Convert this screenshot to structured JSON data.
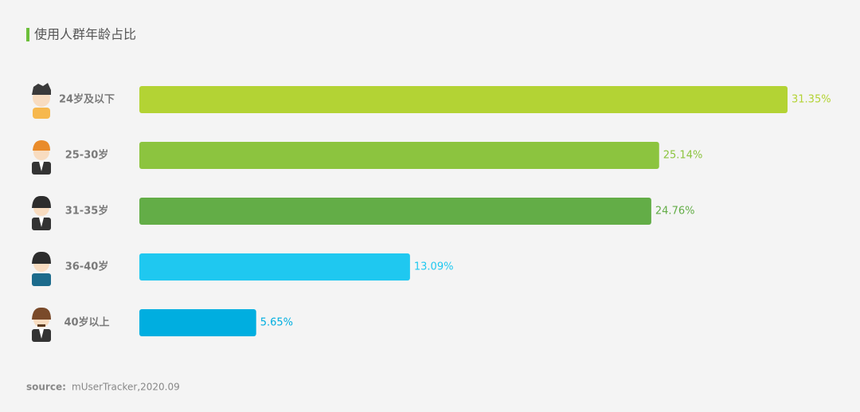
{
  "chart_data": {
    "type": "bar",
    "orientation": "horizontal",
    "title": "使用人群年龄占比",
    "categories": [
      "24岁及以下",
      "25-30岁",
      "31-35岁",
      "36-40岁",
      "40岁以上"
    ],
    "values": [
      31.35,
      25.14,
      24.76,
      13.09,
      5.65
    ],
    "value_labels": [
      "31.35%",
      "25.14%",
      "24.76%",
      "13.09%",
      "5.65%"
    ],
    "colors": [
      "#b3d334",
      "#8cc43f",
      "#63ad47",
      "#1fc8f0",
      "#00aee0"
    ],
    "source_label": "source:",
    "source": "mUserTracker,2020.09"
  }
}
